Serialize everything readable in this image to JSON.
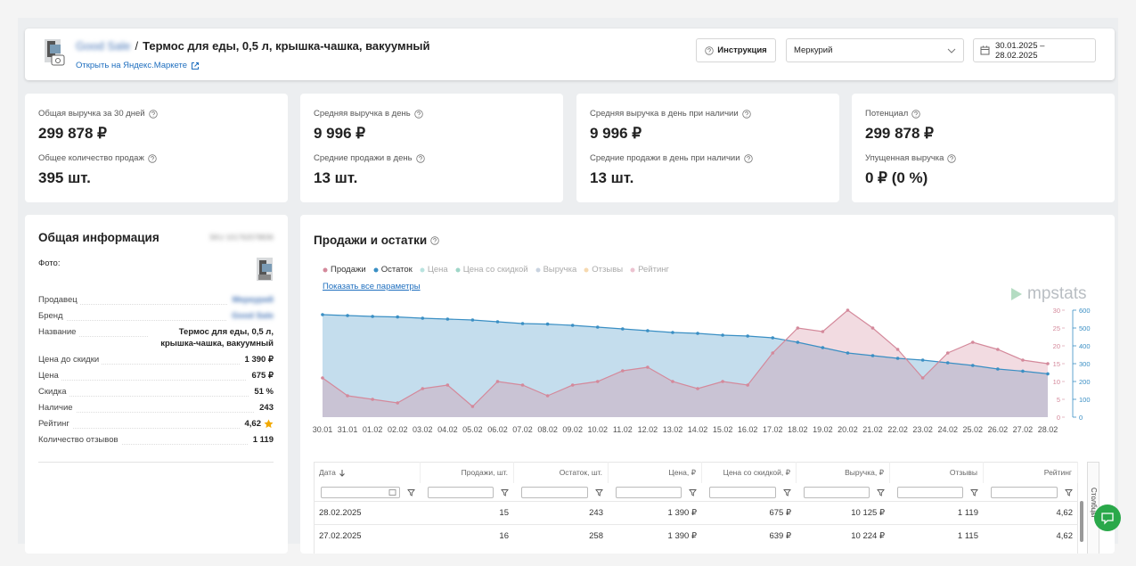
{
  "header": {
    "shop": "Good Sale",
    "separator": "/",
    "title": "Термос для еды, 0,5 л, крышка-чашка, вакуумный",
    "link": "Открыть на Яндекс.Маркете",
    "instruction": "Инструкция",
    "store": "Меркурий",
    "date_range": "30.01.2025 – 28.02.2025"
  },
  "stats": [
    {
      "label": "Общая выручка за 30 дней",
      "value": "299 878 ₽",
      "label2": "Общее количество продаж",
      "value2": "395 шт."
    },
    {
      "label": "Средняя выручка в день",
      "value": "9 996 ₽",
      "label2": "Средние продажи в день",
      "value2": "13 шт."
    },
    {
      "label": "Средняя выручка в день при наличии",
      "value": "9 996 ₽",
      "label2": "Средние продажи в день при наличии",
      "value2": "13 шт."
    },
    {
      "label": "Потенциал",
      "value": "299 878 ₽",
      "label2": "Упущенная выручка",
      "value2": "0 ₽ (0 %)"
    }
  ],
  "info": {
    "title": "Общая информация",
    "sku": "SKU 101762078836",
    "photo_label": "Фото:",
    "rows": [
      [
        "Продавец",
        "Меркурий"
      ],
      [
        "Бренд",
        "Good Sale"
      ],
      [
        "Название",
        "Термос для еды, 0,5 л, крышка-чашка, вакуумный"
      ],
      [
        "Цена до скидки",
        "1 390 ₽"
      ],
      [
        "Цена",
        "675 ₽"
      ],
      [
        "Скидка",
        "51 %"
      ],
      [
        "Наличие",
        "243"
      ],
      [
        "Рейтинг",
        "4,62"
      ],
      [
        "Количество отзывов",
        "1 119"
      ]
    ]
  },
  "chart_data": {
    "type": "line",
    "title": "Продажи и остатки",
    "show_all": "Показать все параметры",
    "brand": "mpstats",
    "categories": [
      "30.01",
      "31.01",
      "01.02",
      "02.02",
      "03.02",
      "04.02",
      "05.02",
      "06.02",
      "07.02",
      "08.02",
      "09.02",
      "10.02",
      "11.02",
      "12.02",
      "13.02",
      "14.02",
      "15.02",
      "16.02",
      "17.02",
      "18.02",
      "19.02",
      "20.02",
      "21.02",
      "22.02",
      "23.02",
      "24.02",
      "25.02",
      "26.02",
      "27.02",
      "28.02"
    ],
    "series": [
      {
        "name": "Продажи",
        "color": "#d4899b",
        "axis": "y",
        "values": [
          11,
          6,
          5,
          4,
          8,
          9,
          3,
          10,
          9,
          6,
          9,
          10,
          13,
          14,
          10,
          8,
          10,
          9,
          18,
          25,
          24,
          30,
          25,
          19,
          11,
          18,
          21,
          19,
          16,
          15
        ]
      },
      {
        "name": "Остаток",
        "color": "#3a8fc4",
        "axis": "y2",
        "values": [
          575,
          570,
          565,
          562,
          555,
          550,
          545,
          535,
          525,
          522,
          515,
          505,
          495,
          485,
          475,
          470,
          460,
          455,
          445,
          420,
          390,
          360,
          345,
          330,
          320,
          305,
          290,
          270,
          258,
          243
        ]
      }
    ],
    "inactive_legend": [
      {
        "name": "Цена",
        "color": "#b9e3df"
      },
      {
        "name": "Цена со скидкой",
        "color": "#9fd6c8"
      },
      {
        "name": "Выручка",
        "color": "#c9d3e0"
      },
      {
        "name": "Отзывы",
        "color": "#f6d9b0"
      },
      {
        "name": "Рейтинг",
        "color": "#ecc3d0"
      }
    ],
    "ylim": [
      0,
      30
    ],
    "yticks": [
      0,
      5,
      10,
      15,
      20,
      25,
      30
    ],
    "y2lim": [
      0,
      600
    ],
    "y2ticks": [
      0,
      100,
      200,
      300,
      400,
      500,
      600
    ],
    "grid": false
  },
  "table": {
    "columns": [
      "Дата",
      "Продажи, шт.",
      "Остаток, шт.",
      "Цена, ₽",
      "Цена со скидкой, ₽",
      "Выручка, ₽",
      "Отзывы",
      "Рейтинг"
    ],
    "rows": [
      [
        "28.02.2025",
        "15",
        "243",
        "1 390 ₽",
        "675 ₽",
        "10 125 ₽",
        "1 119",
        "4,62"
      ],
      [
        "27.02.2025",
        "16",
        "258",
        "1 390 ₽",
        "639 ₽",
        "10 224 ₽",
        "1 115",
        "4,62"
      ]
    ],
    "side_tab": "Столбцы"
  }
}
